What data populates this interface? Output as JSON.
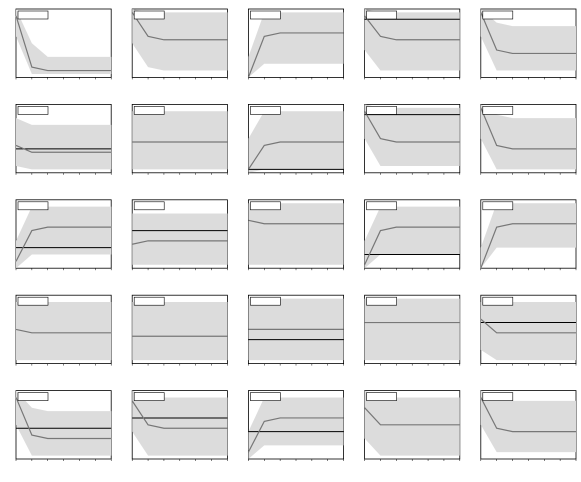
{
  "chart_data": [
    {
      "type": "line",
      "x": [
        0,
        1,
        2,
        3,
        4,
        5,
        6
      ],
      "xlim": [
        0,
        6
      ],
      "ylim": [
        0,
        1
      ],
      "values": [
        0.9,
        0.15,
        0.1,
        0.1,
        0.1,
        0.1,
        0.1
      ],
      "lower": [
        0.6,
        0.05,
        0.05,
        0.05,
        0.05,
        0.05,
        0.05
      ],
      "upper": [
        1,
        0.5,
        0.3,
        0.3,
        0.3,
        0.3,
        0.3
      ],
      "hline": null
    },
    {
      "type": "line",
      "x": [
        0,
        1,
        2,
        3,
        4,
        5,
        6
      ],
      "xlim": [
        0,
        6
      ],
      "ylim": [
        0,
        1
      ],
      "values": [
        0.95,
        0.6,
        0.55,
        0.55,
        0.55,
        0.55,
        0.55
      ],
      "lower": [
        0.5,
        0.15,
        0.1,
        0.1,
        0.1,
        0.1,
        0.1
      ],
      "upper": [
        1,
        0.95,
        0.95,
        0.95,
        0.95,
        0.95,
        0.95
      ],
      "hline": null
    },
    {
      "type": "line",
      "x": [
        0,
        1,
        2,
        3,
        4,
        5,
        6
      ],
      "xlim": [
        0,
        6
      ],
      "ylim": [
        0,
        1
      ],
      "values": [
        0,
        0.6,
        0.65,
        0.65,
        0.65,
        0.65,
        0.65
      ],
      "lower": [
        0,
        0.2,
        0.2,
        0.2,
        0.2,
        0.2,
        0.2
      ],
      "upper": [
        0.3,
        0.95,
        0.95,
        0.95,
        0.95,
        0.95,
        0.95
      ],
      "hline": null
    },
    {
      "type": "line",
      "x": [
        0,
        1,
        2,
        3,
        4,
        5,
        6
      ],
      "xlim": [
        0,
        6
      ],
      "ylim": [
        0,
        1
      ],
      "values": [
        0.9,
        0.6,
        0.55,
        0.55,
        0.55,
        0.55,
        0.55
      ],
      "lower": [
        0.4,
        0.1,
        0.1,
        0.1,
        0.1,
        0.1,
        0.1
      ],
      "upper": [
        1,
        0.95,
        0.95,
        0.95,
        0.95,
        0.95,
        0.95
      ],
      "hline": 0.85
    },
    {
      "type": "line",
      "x": [
        0,
        1,
        2,
        3,
        4,
        5,
        6
      ],
      "xlim": [
        0,
        6
      ],
      "ylim": [
        0,
        1
      ],
      "values": [
        0.95,
        0.4,
        0.35,
        0.35,
        0.35,
        0.35,
        0.35
      ],
      "lower": [
        0.6,
        0.1,
        0.1,
        0.1,
        0.1,
        0.1,
        0.1
      ],
      "upper": [
        1,
        0.8,
        0.75,
        0.75,
        0.75,
        0.75,
        0.75
      ],
      "hline": null
    },
    {
      "type": "line",
      "x": [
        0,
        1,
        2,
        3,
        4,
        5,
        6
      ],
      "xlim": [
        0,
        6
      ],
      "ylim": [
        0,
        1
      ],
      "values": [
        0.4,
        0.3,
        0.3,
        0.3,
        0.3,
        0.3,
        0.3
      ],
      "lower": [
        0.1,
        0.05,
        0.05,
        0.05,
        0.05,
        0.05,
        0.05
      ],
      "upper": [
        0.8,
        0.7,
        0.7,
        0.7,
        0.7,
        0.7,
        0.7
      ],
      "hline": 0.35
    },
    {
      "type": "line",
      "x": [
        0,
        1,
        2,
        3,
        4,
        5,
        6
      ],
      "xlim": [
        0,
        6
      ],
      "ylim": [
        0,
        1
      ],
      "values": [
        0.45,
        0.45,
        0.45,
        0.45,
        0.45,
        0.45,
        0.45
      ],
      "lower": [
        0.05,
        0.05,
        0.05,
        0.05,
        0.05,
        0.05,
        0.05
      ],
      "upper": [
        0.9,
        0.9,
        0.9,
        0.9,
        0.9,
        0.9,
        0.9
      ],
      "hline": null
    },
    {
      "type": "line",
      "x": [
        0,
        1,
        2,
        3,
        4,
        5,
        6
      ],
      "xlim": [
        0,
        6
      ],
      "ylim": [
        0,
        1
      ],
      "values": [
        0.05,
        0.4,
        0.45,
        0.45,
        0.45,
        0.45,
        0.45
      ],
      "lower": [
        0,
        0.05,
        0.05,
        0.05,
        0.05,
        0.05,
        0.05
      ],
      "upper": [
        0.5,
        0.9,
        0.9,
        0.9,
        0.9,
        0.9,
        0.9
      ],
      "hline": 0.05
    },
    {
      "type": "line",
      "x": [
        0,
        1,
        2,
        3,
        4,
        5,
        6
      ],
      "xlim": [
        0,
        6
      ],
      "ylim": [
        0,
        1
      ],
      "values": [
        0.9,
        0.5,
        0.45,
        0.45,
        0.45,
        0.45,
        0.45
      ],
      "lower": [
        0.5,
        0.1,
        0.1,
        0.1,
        0.1,
        0.1,
        0.1
      ],
      "upper": [
        1,
        0.95,
        0.95,
        0.95,
        0.95,
        0.95,
        0.95
      ],
      "hline": 0.85
    },
    {
      "type": "line",
      "x": [
        0,
        1,
        2,
        3,
        4,
        5,
        6
      ],
      "xlim": [
        0,
        6
      ],
      "ylim": [
        0,
        1
      ],
      "values": [
        0.95,
        0.4,
        0.35,
        0.35,
        0.35,
        0.35,
        0.35
      ],
      "lower": [
        0.5,
        0.05,
        0.05,
        0.05,
        0.05,
        0.05,
        0.05
      ],
      "upper": [
        1,
        0.85,
        0.8,
        0.8,
        0.8,
        0.8,
        0.8
      ],
      "hline": null
    },
    {
      "type": "line",
      "x": [
        0,
        1,
        2,
        3,
        4,
        5,
        6
      ],
      "xlim": [
        0,
        6
      ],
      "ylim": [
        0,
        1
      ],
      "values": [
        0.1,
        0.55,
        0.6,
        0.6,
        0.6,
        0.6,
        0.6
      ],
      "lower": [
        0,
        0.2,
        0.2,
        0.2,
        0.2,
        0.2,
        0.2
      ],
      "upper": [
        0.4,
        0.9,
        0.9,
        0.9,
        0.9,
        0.9,
        0.9
      ],
      "hline": 0.3
    },
    {
      "type": "line",
      "x": [
        0,
        1,
        2,
        3,
        4,
        5,
        6
      ],
      "xlim": [
        0,
        6
      ],
      "ylim": [
        0,
        1
      ],
      "values": [
        0.35,
        0.4,
        0.4,
        0.4,
        0.4,
        0.4,
        0.4
      ],
      "lower": [
        0.05,
        0.05,
        0.05,
        0.05,
        0.05,
        0.05,
        0.05
      ],
      "upper": [
        0.8,
        0.8,
        0.8,
        0.8,
        0.8,
        0.8,
        0.8
      ],
      "hline": 0.55
    },
    {
      "type": "line",
      "x": [
        0,
        1,
        2,
        3,
        4,
        5,
        6
      ],
      "xlim": [
        0,
        6
      ],
      "ylim": [
        0,
        1
      ],
      "values": [
        0.7,
        0.65,
        0.65,
        0.65,
        0.65,
        0.65,
        0.65
      ],
      "lower": [
        0.05,
        0.05,
        0.05,
        0.05,
        0.05,
        0.05,
        0.05
      ],
      "upper": [
        0.95,
        0.95,
        0.95,
        0.95,
        0.95,
        0.95,
        0.95
      ],
      "hline": null
    },
    {
      "type": "line",
      "x": [
        0,
        1,
        2,
        3,
        4,
        5,
        6
      ],
      "xlim": [
        0,
        6
      ],
      "ylim": [
        0,
        1
      ],
      "values": [
        0.05,
        0.55,
        0.6,
        0.6,
        0.6,
        0.6,
        0.6
      ],
      "lower": [
        0,
        0.2,
        0.2,
        0.2,
        0.2,
        0.2,
        0.2
      ],
      "upper": [
        0.4,
        0.9,
        0.9,
        0.9,
        0.9,
        0.9,
        0.9
      ],
      "hline": 0.2
    },
    {
      "type": "line",
      "x": [
        0,
        1,
        2,
        3,
        4,
        5,
        6
      ],
      "xlim": [
        0,
        6
      ],
      "ylim": [
        0,
        1
      ],
      "values": [
        0,
        0.6,
        0.65,
        0.65,
        0.65,
        0.65,
        0.65
      ],
      "lower": [
        0,
        0.3,
        0.3,
        0.3,
        0.3,
        0.3,
        0.3
      ],
      "upper": [
        0.3,
        0.95,
        0.95,
        0.95,
        0.95,
        0.95,
        0.95
      ],
      "hline": null
    },
    {
      "type": "line",
      "x": [
        0,
        1,
        2,
        3,
        4,
        5,
        6
      ],
      "xlim": [
        0,
        6
      ],
      "ylim": [
        0,
        1
      ],
      "values": [
        0.5,
        0.45,
        0.45,
        0.45,
        0.45,
        0.45,
        0.45
      ],
      "lower": [
        0.05,
        0.05,
        0.05,
        0.05,
        0.05,
        0.05,
        0.05
      ],
      "upper": [
        0.9,
        0.9,
        0.9,
        0.9,
        0.9,
        0.9,
        0.9
      ],
      "hline": null
    },
    {
      "type": "line",
      "x": [
        0,
        1,
        2,
        3,
        4,
        5,
        6
      ],
      "xlim": [
        0,
        6
      ],
      "ylim": [
        0,
        1
      ],
      "values": [
        0.4,
        0.4,
        0.4,
        0.4,
        0.4,
        0.4,
        0.4
      ],
      "lower": [
        0.05,
        0.05,
        0.05,
        0.05,
        0.05,
        0.05,
        0.05
      ],
      "upper": [
        0.9,
        0.9,
        0.9,
        0.9,
        0.9,
        0.9,
        0.9
      ],
      "hline": null
    },
    {
      "type": "line",
      "x": [
        0,
        1,
        2,
        3,
        4,
        5,
        6
      ],
      "xlim": [
        0,
        6
      ],
      "ylim": [
        0,
        1
      ],
      "values": [
        0.5,
        0.5,
        0.5,
        0.5,
        0.5,
        0.5,
        0.5
      ],
      "lower": [
        0.05,
        0.05,
        0.05,
        0.05,
        0.05,
        0.05,
        0.05
      ],
      "upper": [
        0.95,
        0.95,
        0.95,
        0.95,
        0.95,
        0.95,
        0.95
      ],
      "hline": 0.35
    },
    {
      "type": "line",
      "x": [
        0,
        1,
        2,
        3,
        4,
        5,
        6
      ],
      "xlim": [
        0,
        6
      ],
      "ylim": [
        0,
        1
      ],
      "values": [
        0.6,
        0.6,
        0.6,
        0.6,
        0.6,
        0.6,
        0.6
      ],
      "lower": [
        0.05,
        0.05,
        0.05,
        0.05,
        0.05,
        0.05,
        0.05
      ],
      "upper": [
        0.95,
        0.95,
        0.95,
        0.95,
        0.95,
        0.95,
        0.95
      ],
      "hline": null
    },
    {
      "type": "line",
      "x": [
        0,
        1,
        2,
        3,
        4,
        5,
        6
      ],
      "xlim": [
        0,
        6
      ],
      "ylim": [
        0,
        1
      ],
      "values": [
        0.65,
        0.45,
        0.45,
        0.45,
        0.45,
        0.45,
        0.45
      ],
      "lower": [
        0.2,
        0.05,
        0.05,
        0.05,
        0.05,
        0.05,
        0.05
      ],
      "upper": [
        0.9,
        0.9,
        0.9,
        0.9,
        0.9,
        0.9,
        0.9
      ],
      "hline": 0.6
    },
    {
      "type": "line",
      "x": [
        0,
        1,
        2,
        3,
        4,
        5,
        6
      ],
      "xlim": [
        0,
        6
      ],
      "ylim": [
        0,
        1
      ],
      "values": [
        0.9,
        0.35,
        0.3,
        0.3,
        0.3,
        0.3,
        0.3
      ],
      "lower": [
        0.5,
        0.05,
        0.05,
        0.05,
        0.05,
        0.05,
        0.05
      ],
      "upper": [
        1,
        0.75,
        0.7,
        0.7,
        0.7,
        0.7,
        0.7
      ],
      "hline": 0.45
    },
    {
      "type": "line",
      "x": [
        0,
        1,
        2,
        3,
        4,
        5,
        6
      ],
      "xlim": [
        0,
        6
      ],
      "ylim": [
        0,
        1
      ],
      "values": [
        0.85,
        0.5,
        0.45,
        0.45,
        0.45,
        0.45,
        0.45
      ],
      "lower": [
        0.4,
        0.05,
        0.05,
        0.05,
        0.05,
        0.05,
        0.05
      ],
      "upper": [
        1,
        0.9,
        0.9,
        0.9,
        0.9,
        0.9,
        0.9
      ],
      "hline": 0.6
    },
    {
      "type": "line",
      "x": [
        0,
        1,
        2,
        3,
        4,
        5,
        6
      ],
      "xlim": [
        0,
        6
      ],
      "ylim": [
        0,
        1
      ],
      "values": [
        0.1,
        0.55,
        0.6,
        0.6,
        0.6,
        0.6,
        0.6
      ],
      "lower": [
        0,
        0.2,
        0.2,
        0.2,
        0.2,
        0.2,
        0.2
      ],
      "upper": [
        0.4,
        0.9,
        0.9,
        0.9,
        0.9,
        0.9,
        0.9
      ],
      "hline": 0.4
    },
    {
      "type": "line",
      "x": [
        0,
        1,
        2,
        3,
        4,
        5,
        6
      ],
      "xlim": [
        0,
        6
      ],
      "ylim": [
        0,
        1
      ],
      "values": [
        0.75,
        0.5,
        0.5,
        0.5,
        0.5,
        0.5,
        0.5
      ],
      "lower": [
        0.3,
        0.05,
        0.05,
        0.05,
        0.05,
        0.05,
        0.05
      ],
      "upper": [
        1,
        0.9,
        0.9,
        0.9,
        0.9,
        0.9,
        0.9
      ],
      "hline": null
    },
    {
      "type": "line",
      "x": [
        0,
        1,
        2,
        3,
        4,
        5,
        6
      ],
      "xlim": [
        0,
        6
      ],
      "ylim": [
        0,
        1
      ],
      "values": [
        0.9,
        0.45,
        0.4,
        0.4,
        0.4,
        0.4,
        0.4
      ],
      "lower": [
        0.5,
        0.1,
        0.1,
        0.1,
        0.1,
        0.1,
        0.1
      ],
      "upper": [
        1,
        0.9,
        0.85,
        0.85,
        0.85,
        0.85,
        0.85
      ],
      "hline": null
    }
  ]
}
